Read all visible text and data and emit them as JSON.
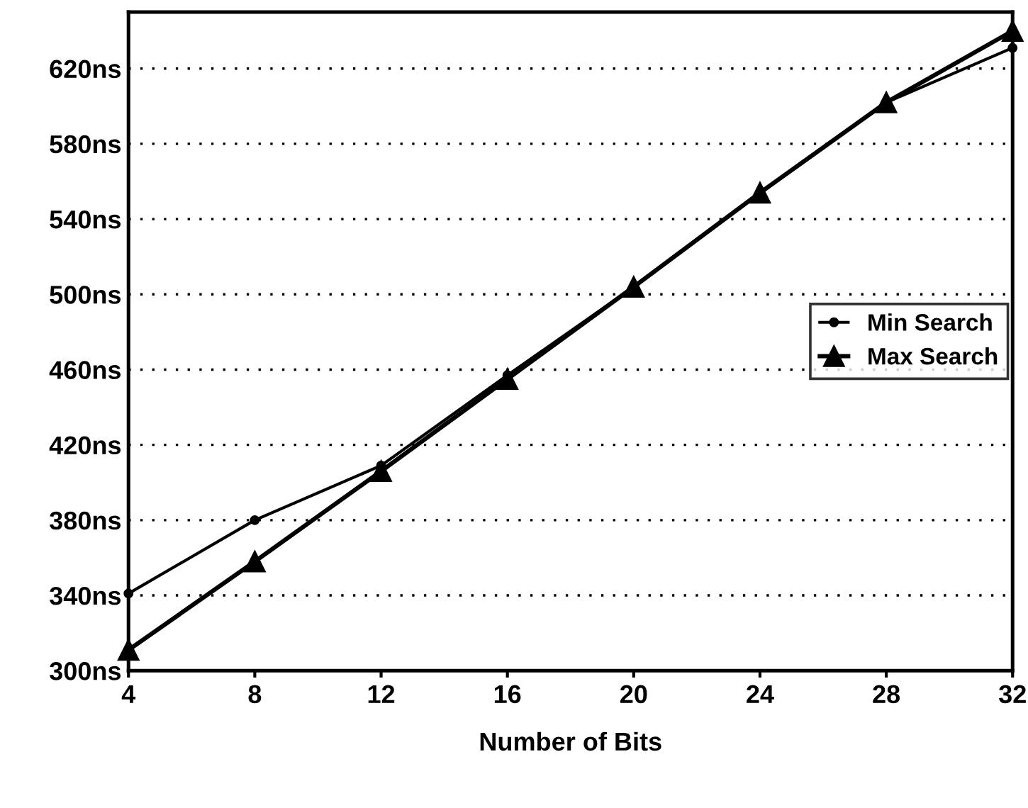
{
  "chart_data": {
    "type": "line",
    "xlabel": "Number of Bits",
    "x": [
      4,
      8,
      12,
      16,
      20,
      24,
      28,
      32
    ],
    "series": [
      {
        "name": "Min Search",
        "color": "#000000",
        "marker": "circle",
        "values": [
          341,
          380,
          409,
          457,
          504,
          554,
          602,
          631
        ]
      },
      {
        "name": "Max Search",
        "color": "#000000",
        "marker": "triangle",
        "values": [
          311,
          358,
          406,
          455,
          504,
          554,
          602,
          640
        ]
      }
    ],
    "xlim": [
      4,
      32
    ],
    "xticks": [
      4,
      8,
      12,
      16,
      20,
      24,
      28,
      32
    ],
    "ylim": [
      300,
      650
    ],
    "yticks": [
      {
        "value": 300,
        "label": "300ns"
      },
      {
        "value": 340,
        "label": "340ns"
      },
      {
        "value": 380,
        "label": "380ns"
      },
      {
        "value": 420,
        "label": "420ns"
      },
      {
        "value": 460,
        "label": "460ns"
      },
      {
        "value": 500,
        "label": "500ns"
      },
      {
        "value": 540,
        "label": "540ns"
      },
      {
        "value": 580,
        "label": "580ns"
      },
      {
        "value": 620,
        "label": "620ns"
      }
    ],
    "grid": "y",
    "legend": "right",
    "line_style": "solid"
  }
}
